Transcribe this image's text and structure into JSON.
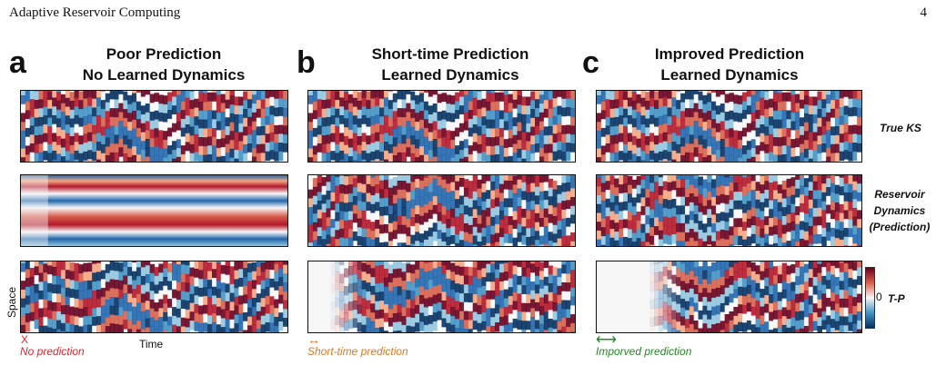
{
  "header": {
    "running_title": "Adaptive Reservoir Computing",
    "page_number": "4"
  },
  "panels": [
    {
      "letter": "a",
      "title_line1": "Poor Prediction",
      "title_line2": "No Learned Dynamics",
      "marker_symbol": "X",
      "note": "No prediction",
      "note_color": "#e8202a"
    },
    {
      "letter": "b",
      "title_line1": "Short-time Prediction",
      "title_line2": "Learned Dynamics",
      "marker_symbol": "↔",
      "note": "Short-time prediction",
      "note_color": "#e0761e"
    },
    {
      "letter": "c",
      "title_line1": "Improved Prediction",
      "title_line2": "Learned Dynamics",
      "marker_symbol": "⟷",
      "note": "Imporved prediction",
      "note_color": "#1f8a1f"
    }
  ],
  "row_labels": {
    "true": "True KS",
    "reservoir_line1": "Reservoir",
    "reservoir_line2": "Dynamics",
    "reservoir_line3": "(Prediction)",
    "error": "T-P"
  },
  "axis_labels": {
    "y": "Space",
    "x": "Time"
  },
  "colorbar": {
    "tick": "0",
    "colors": [
      "#67001f",
      "#d6604d",
      "#f7f7f7",
      "#4393c3",
      "#053061"
    ]
  },
  "colors": {
    "red": "#b2182b",
    "blue": "#2166ac"
  }
}
